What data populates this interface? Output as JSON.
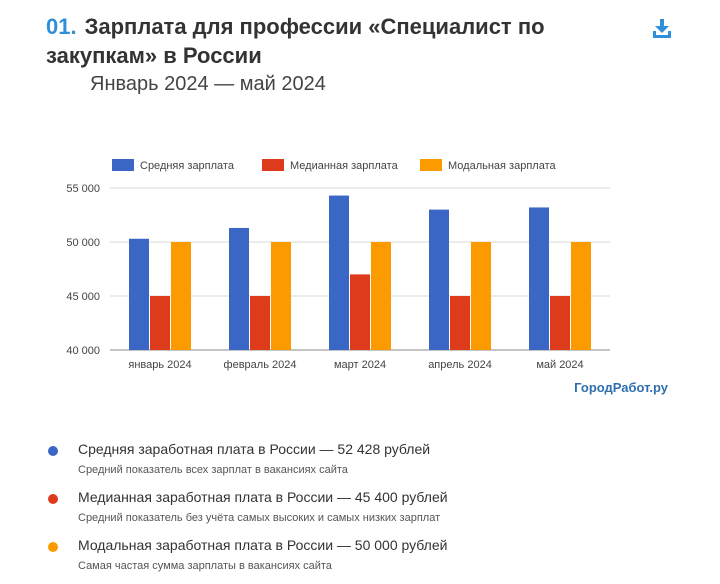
{
  "header": {
    "number": "01.",
    "title_line1": "Зарплата для профессии «Специалист по",
    "title_line2": "закупкам» в России",
    "subtitle": "Январь 2024 — май 2024"
  },
  "icons": {
    "download": "download-icon"
  },
  "colors": {
    "avg": "#3a66c6",
    "median": "#dd3b1b",
    "mode": "#fb9b00",
    "accent": "#2f8fd8"
  },
  "brand": "ГородРабот.ру",
  "chart_data": {
    "type": "bar",
    "categories": [
      "январь 2024",
      "февраль 2024",
      "март 2024",
      "апрель 2024",
      "май 2024"
    ],
    "series": [
      {
        "name": "Средняя зарплата",
        "values": [
          50300,
          51300,
          54300,
          53000,
          53200
        ]
      },
      {
        "name": "Медианная зарплата",
        "values": [
          45000,
          45000,
          47000,
          45000,
          45000
        ]
      },
      {
        "name": "Модальная зарплата",
        "values": [
          50000,
          50000,
          50000,
          50000,
          50000
        ]
      }
    ],
    "ylim": [
      40000,
      55000
    ],
    "yticks": [
      "40 000",
      "45 000",
      "50 000",
      "55 000"
    ],
    "grid": true,
    "legend_position": "top"
  },
  "notes": [
    {
      "title": "Средняя заработная плата в России — 52 428 рублей",
      "desc": "Средний показатель всех зарплат в вакансиях сайта"
    },
    {
      "title": "Медианная заработная плата в России — 45 400 рублей",
      "desc": "Средний показатель без учёта самых высоких и самых низких зарплат"
    },
    {
      "title": "Модальная заработная плата в России — 50 000 рублей",
      "desc": "Самая частая сумма зарплаты в вакансиях сайта"
    }
  ]
}
